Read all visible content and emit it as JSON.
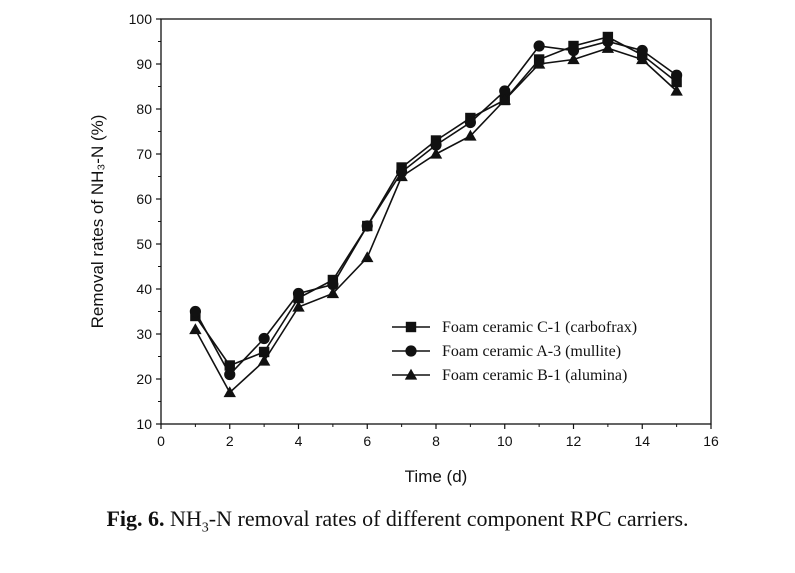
{
  "chart_data": {
    "type": "line",
    "xlabel": "Time (d)",
    "ylabel": "Removal rates of NH₃-N (%)",
    "xlim": [
      0,
      16
    ],
    "ylim": [
      10,
      100
    ],
    "x_ticks": [
      0,
      2,
      4,
      6,
      8,
      10,
      12,
      14,
      16
    ],
    "y_ticks": [
      10,
      20,
      30,
      40,
      50,
      60,
      70,
      80,
      90,
      100
    ],
    "grid": false,
    "legend_position": "bottom-right",
    "x": [
      1,
      2,
      3,
      4,
      5,
      6,
      7,
      8,
      9,
      10,
      11,
      12,
      13,
      14,
      15
    ],
    "series": [
      {
        "name": "Foam ceramic C-1 (carbofrax)",
        "marker": "square",
        "values": [
          34,
          23,
          26,
          38,
          42,
          54,
          67,
          73,
          78,
          82,
          91,
          94,
          96,
          92,
          86
        ]
      },
      {
        "name": "Foam ceramic A-3 (mullite)",
        "marker": "circle",
        "values": [
          35,
          21,
          29,
          39,
          41,
          54,
          66,
          72,
          77,
          84,
          94,
          93,
          95,
          93,
          87.5
        ]
      },
      {
        "name": "Foam ceramic B-1 (alumina)",
        "marker": "triangle",
        "values": [
          31,
          17,
          24,
          36,
          39,
          47,
          65,
          70,
          74,
          82,
          90,
          91,
          93.5,
          91,
          84
        ]
      }
    ]
  },
  "caption": {
    "label": "Fig. 6.",
    "text_before": "NH",
    "subscript": "3",
    "text_after": "-N removal rates of different component RPC carriers."
  }
}
